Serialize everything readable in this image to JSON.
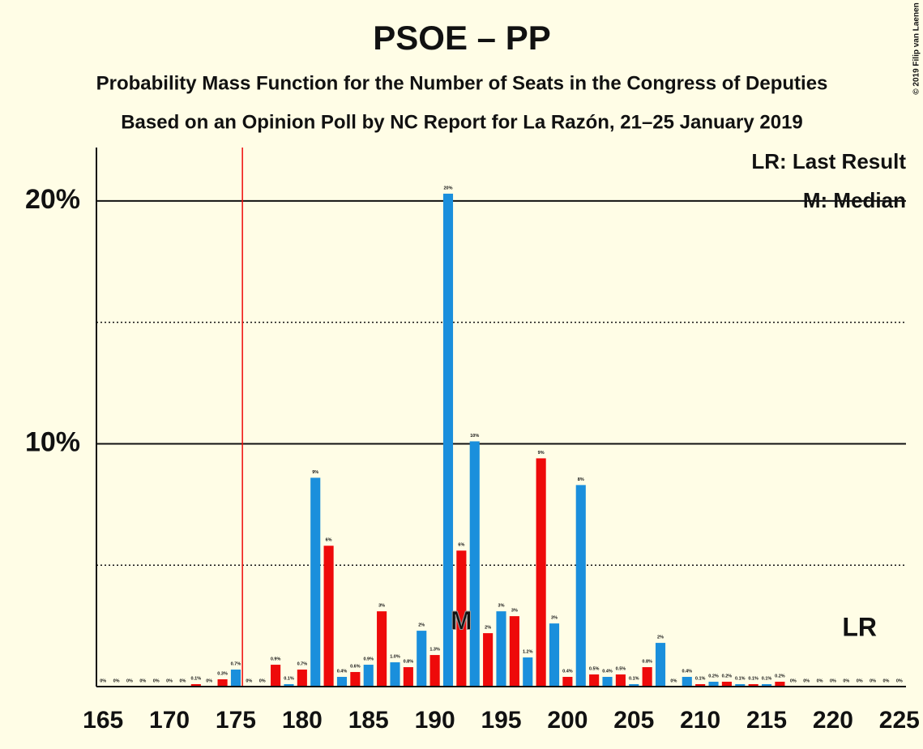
{
  "chart_data": {
    "type": "bar",
    "title": "PSOE – PP",
    "subtitle": [
      "Probability Mass Function for the Number of Seats in the Congress of Deputies",
      "Based on an Opinion Poll by NC Report for La Razón, 21–25 January 2019"
    ],
    "credit": "© 2019 Filip van Laenen",
    "legend": [
      "LR: Last Result",
      "M: Median"
    ],
    "x": [
      165,
      166,
      167,
      168,
      169,
      170,
      171,
      172,
      173,
      174,
      175,
      176,
      177,
      178,
      179,
      180,
      181,
      182,
      183,
      184,
      185,
      186,
      187,
      188,
      189,
      190,
      191,
      192,
      193,
      194,
      195,
      196,
      197,
      198,
      199,
      200,
      201,
      202,
      203,
      204,
      205,
      206,
      207,
      208,
      209,
      210,
      211,
      212,
      213,
      214,
      215,
      216,
      217,
      218,
      219,
      220,
      221,
      222,
      223,
      224,
      225
    ],
    "values": [
      0,
      0,
      0,
      0,
      0,
      0,
      0,
      0.1,
      0,
      0.3,
      0.7,
      0,
      0,
      0.9,
      0.1,
      0.7,
      8.6,
      5.8,
      0.4,
      0.6,
      0.9,
      3.1,
      1.0,
      0.8,
      2.3,
      1.3,
      20.3,
      5.6,
      10.1,
      2.2,
      3.1,
      2.9,
      1.2,
      9.4,
      2.6,
      0.4,
      8.3,
      0.5,
      0.4,
      0.5,
      0.1,
      0.8,
      1.8,
      0,
      0.4,
      0.1,
      0.2,
      0.2,
      0.1,
      0.1,
      0.1,
      0.2,
      0,
      0,
      0,
      0,
      0,
      0,
      0,
      0,
      0
    ],
    "value_labels": [
      "0%",
      "0%",
      "0%",
      "0%",
      "0%",
      "0%",
      "0%",
      "0.1%",
      "0%",
      "0.3%",
      "0.7%",
      "0%",
      "0%",
      "0.9%",
      "0.1%",
      "0.7%",
      "9%",
      "6%",
      "0.4%",
      "0.6%",
      "0.9%",
      "3%",
      "1.0%",
      "0.8%",
      "2%",
      "1.3%",
      "20%",
      "6%",
      "10%",
      "2%",
      "3%",
      "3%",
      "1.2%",
      "9%",
      "3%",
      "0.4%",
      "8%",
      "0.5%",
      "0.4%",
      "0.5%",
      "0.1%",
      "0.8%",
      "2%",
      "0%",
      "0.4%",
      "0.1%",
      "0.2%",
      "0.2%",
      "0.1%",
      "0.1%",
      "0.1%",
      "0.2%",
      "0%",
      "0%",
      "0%",
      "0%",
      "0%",
      "0%",
      "0%",
      "0%",
      "0%"
    ],
    "colors": {
      "odd": "#1a8fdc",
      "even": "#ee0a0a"
    },
    "majority": 176,
    "median": {
      "value": 192,
      "label": "M"
    },
    "last_result": {
      "value": 222,
      "label": "LR"
    },
    "xlim": [
      164.5,
      225.5
    ],
    "xticks": [
      165,
      170,
      175,
      180,
      185,
      190,
      195,
      200,
      205,
      210,
      215,
      220,
      225
    ],
    "ylim": [
      0,
      22.2
    ],
    "yticks": [
      {
        "value": 10,
        "label": "10%"
      },
      {
        "value": 20,
        "label": "20%"
      }
    ],
    "minor_yticks": [
      5,
      15
    ],
    "grid": true
  }
}
